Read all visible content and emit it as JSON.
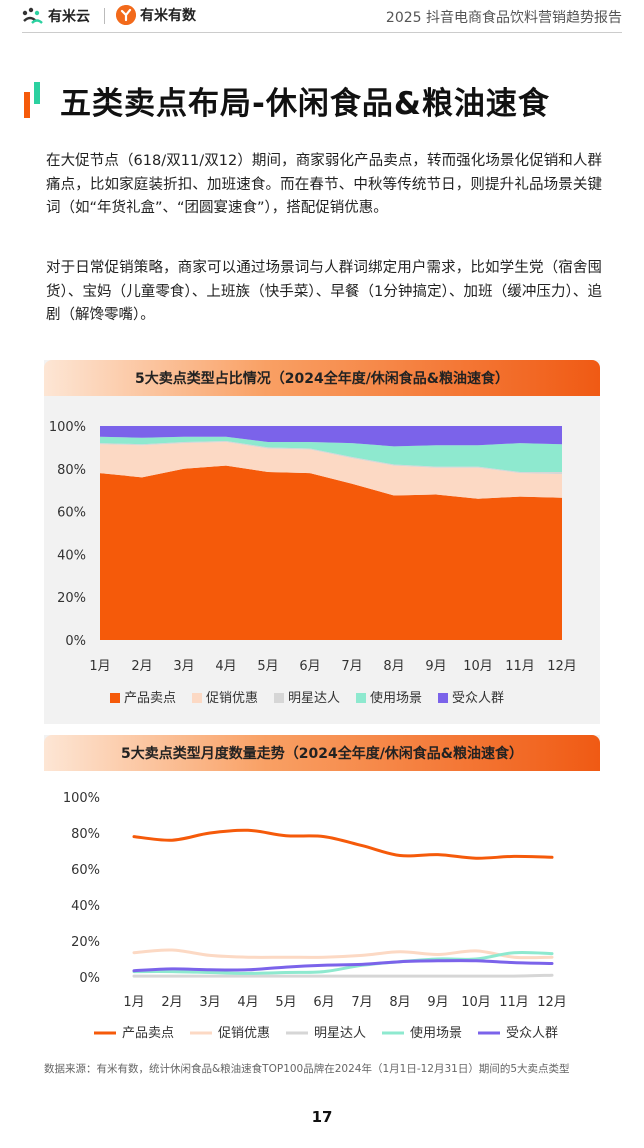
{
  "header": {
    "logo1_text": "有米云",
    "logo2_text": "有米有数",
    "report_title": "2025 抖音电商食品饮料营销趋势报告"
  },
  "page_title": "五类卖点布局-休闲食品&粮油速食",
  "paragraphs": [
    "在大促节点（618/双11/双12）期间，商家弱化产品卖点，转而强化场景化促销和人群痛点，比如家庭装折扣、加班速食。而在春节、中秋等传统节日，则提升礼品场景关键词（如“年货礼盒”、“团圆宴速食”），搭配促销优惠。",
    "对于日常促销策略，商家可以通过场景词与人群词绑定用户需求，比如学生党（宿舍囤货）、宝妈（儿童零食）、上班族（快手菜）、早餐（1分钟搞定）、加班（缓冲压力）、追剧（解馋零嘴）。"
  ],
  "colors": {
    "产品卖点": "#f55a0a",
    "促销优惠": "#fcd9c4",
    "明星达人": "#d6d6d6",
    "使用场景": "#8ee9cf",
    "受众人群": "#7b63ea"
  },
  "chart_data": [
    {
      "type": "area",
      "title": "5大卖点类型占比情况（2024全年度/休闲食品&粮油速食）",
      "categories": [
        "1月",
        "2月",
        "3月",
        "4月",
        "5月",
        "6月",
        "7月",
        "8月",
        "9月",
        "10月",
        "11月",
        "12月"
      ],
      "yticks": [
        "0%",
        "20%",
        "40%",
        "60%",
        "80%",
        "100%"
      ],
      "ylim": [
        0,
        100
      ],
      "stacked": true,
      "legend_position": "bottom",
      "series": [
        {
          "name": "产品卖点",
          "values": [
            78,
            76,
            80,
            81.5,
            78.5,
            78,
            73,
            67.5,
            68,
            66,
            67,
            66.5
          ]
        },
        {
          "name": "促销优惠",
          "values": [
            13.5,
            15,
            12,
            11,
            11,
            11,
            12,
            14,
            12.5,
            14.5,
            11,
            11
          ]
        },
        {
          "name": "明星达人",
          "values": [
            0.5,
            0.5,
            0.5,
            0.5,
            0.5,
            0.5,
            0.5,
            0.5,
            0.5,
            0.5,
            0.5,
            1
          ]
        },
        {
          "name": "使用场景",
          "values": [
            3,
            3,
            2.5,
            2,
            2.5,
            3,
            6.5,
            8.5,
            10,
            10,
            13.5,
            13
          ]
        },
        {
          "name": "受众人群",
          "values": [
            5,
            5.5,
            5,
            5,
            7.5,
            7.5,
            8,
            9.5,
            9,
            9,
            8,
            8.5
          ]
        }
      ]
    },
    {
      "type": "line",
      "title": "5大卖点类型月度数量走势（2024全年度/休闲食品&粮油速食）",
      "categories": [
        "1月",
        "2月",
        "3月",
        "4月",
        "5月",
        "6月",
        "7月",
        "8月",
        "9月",
        "10月",
        "11月",
        "12月"
      ],
      "yticks": [
        "0%",
        "20%",
        "40%",
        "60%",
        "80%",
        "100%"
      ],
      "ylim": [
        0,
        100
      ],
      "legend_position": "bottom",
      "series": [
        {
          "name": "产品卖点",
          "values": [
            78,
            76,
            80,
            81.5,
            78.5,
            78,
            73,
            67.5,
            68,
            66,
            67,
            66.5
          ]
        },
        {
          "name": "促销优惠",
          "values": [
            13.5,
            15,
            12,
            11,
            11,
            11,
            12,
            14,
            12.5,
            14.5,
            11,
            11
          ]
        },
        {
          "name": "明星达人",
          "values": [
            0.5,
            0.5,
            0.5,
            0.5,
            0.5,
            0.5,
            0.5,
            0.5,
            0.5,
            0.5,
            0.5,
            1
          ]
        },
        {
          "name": "使用场景",
          "values": [
            3,
            3,
            2.5,
            2,
            2.5,
            3,
            6.5,
            8.5,
            10,
            10,
            13.5,
            13
          ]
        },
        {
          "name": "受众人群",
          "values": [
            3.5,
            4.5,
            4,
            4,
            5.5,
            6.5,
            7,
            8.5,
            9,
            9,
            8,
            7.5
          ]
        }
      ]
    }
  ],
  "source_note": "数据来源：有米有数，统计休闲食品&粮油速食TOP100品牌在2024年（1月1日-12月31日）期间的5大卖点类型",
  "page_number": "17"
}
